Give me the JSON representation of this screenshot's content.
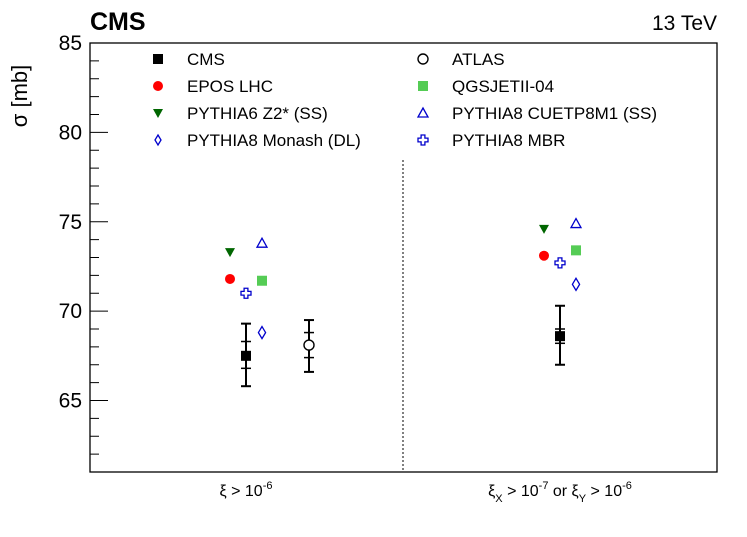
{
  "chart_data": {
    "type": "scatter",
    "experiment": "CMS",
    "energy": "13 TeV",
    "ylabel": "σ [mb]",
    "ylim": [
      61,
      85
    ],
    "yticks": [
      65,
      70,
      75,
      80,
      85
    ],
    "categories": [
      {
        "text": "ξ > 10",
        "sup": "-6"
      },
      {
        "text": "ξ",
        "sub1": "X",
        "mid": " > 10",
        "sup1": "-7",
        "mid2": " or ξ",
        "sub2": "Y",
        "end": " > 10",
        "sup2": "-6"
      }
    ],
    "series": [
      {
        "name": "CMS",
        "marker": "square-filled",
        "color": "#000000",
        "points": [
          {
            "cat": 0,
            "y": 67.5,
            "stat_lo": 66.8,
            "stat_hi": 68.3,
            "tot_lo": 65.8,
            "tot_hi": 69.3
          },
          {
            "cat": 1,
            "y": 68.6,
            "stat_lo": 68.2,
            "stat_hi": 69.0,
            "tot_lo": 67.0,
            "tot_hi": 70.3
          }
        ]
      },
      {
        "name": "ATLAS",
        "marker": "circle-open",
        "color": "#000000",
        "points": [
          {
            "cat": 0,
            "y": 68.1,
            "stat_lo": 67.4,
            "stat_hi": 68.8,
            "tot_lo": 66.6,
            "tot_hi": 69.5
          }
        ]
      },
      {
        "name": "EPOS LHC",
        "marker": "circle-filled",
        "color": "#ff0000",
        "points": [
          {
            "cat": 0,
            "y": 71.8
          },
          {
            "cat": 1,
            "y": 73.1
          }
        ]
      },
      {
        "name": "QGSJETII-04",
        "marker": "square-filled",
        "color": "#55cc55",
        "points": [
          {
            "cat": 0,
            "y": 71.7
          },
          {
            "cat": 1,
            "y": 73.4
          }
        ]
      },
      {
        "name": "PYTHIA6 Z2* (SS)",
        "marker": "triangle-down-filled",
        "color": "#006600",
        "points": [
          {
            "cat": 0,
            "y": 73.3
          },
          {
            "cat": 1,
            "y": 74.6
          }
        ]
      },
      {
        "name": "PYTHIA8 CUETP8M1 (SS)",
        "marker": "triangle-up-open",
        "color": "#0000cc",
        "points": [
          {
            "cat": 0,
            "y": 73.8
          },
          {
            "cat": 1,
            "y": 74.9
          }
        ]
      },
      {
        "name": "PYTHIA8 Monash (DL)",
        "marker": "diamond-open",
        "color": "#0000cc",
        "points": [
          {
            "cat": 0,
            "y": 68.8
          },
          {
            "cat": 1,
            "y": 71.5
          }
        ]
      },
      {
        "name": "PYTHIA8 MBR",
        "marker": "cross-open",
        "color": "#0000cc",
        "points": [
          {
            "cat": 0,
            "y": 71.0
          },
          {
            "cat": 1,
            "y": 72.7
          }
        ]
      }
    ]
  }
}
